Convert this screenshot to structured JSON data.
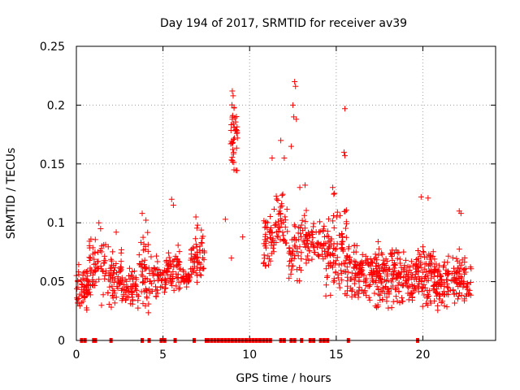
{
  "chart_data": {
    "type": "scatter",
    "title": "Day 194 of 2017, SRMTID for receiver av39",
    "xlabel": "GPS time / hours",
    "ylabel": "SRMTID / TECUs",
    "xlim": [
      0,
      24.2
    ],
    "ylim": [
      0,
      0.25
    ],
    "xticks": [
      0,
      5,
      10,
      15,
      20
    ],
    "yticks": [
      0,
      0.05,
      0.1,
      0.15,
      0.2,
      0.25
    ],
    "xtick_labels": [
      "0",
      "5",
      "10",
      "15",
      "20"
    ],
    "ytick_labels": [
      "0",
      "0.05",
      "0.1",
      "0.15",
      "0.2",
      "0.25"
    ],
    "grid": true,
    "legend": "none",
    "marker": "+",
    "series": [
      {
        "name": "SRMTID",
        "color": "#ff0000",
        "note": "Dense clouds of points reconstructed as clusters (x-range in hours, y-range in TECU), plus explicit outliers and zero-value markers",
        "clusters": [
          {
            "x": [
              0.0,
              0.7
            ],
            "y": [
              0.02,
              0.07
            ],
            "n": 60
          },
          {
            "x": [
              0.7,
              1.7
            ],
            "y": [
              0.025,
              0.1
            ],
            "n": 60
          },
          {
            "x": [
              1.7,
              2.6
            ],
            "y": [
              0.02,
              0.095
            ],
            "n": 60
          },
          {
            "x": [
              2.6,
              3.6
            ],
            "y": [
              0.02,
              0.07
            ],
            "n": 60
          },
          {
            "x": [
              3.6,
              4.2
            ],
            "y": [
              0.01,
              0.11
            ],
            "n": 45
          },
          {
            "x": [
              4.2,
              5.2
            ],
            "y": [
              0.03,
              0.075
            ],
            "n": 55
          },
          {
            "x": [
              5.2,
              6.0
            ],
            "y": [
              0.03,
              0.09
            ],
            "n": 55
          },
          {
            "x": [
              6.0,
              6.6
            ],
            "y": [
              0.04,
              0.065
            ],
            "n": 35
          },
          {
            "x": [
              6.6,
              7.4
            ],
            "y": [
              0.04,
              0.1
            ],
            "n": 55
          },
          {
            "x": [
              8.9,
              9.3
            ],
            "y": [
              0.14,
              0.215
            ],
            "n": 35
          },
          {
            "x": [
              10.8,
              11.4
            ],
            "y": [
              0.05,
              0.12
            ],
            "n": 45
          },
          {
            "x": [
              11.4,
              12.2
            ],
            "y": [
              0.06,
              0.135
            ],
            "n": 45
          },
          {
            "x": [
              12.2,
              13.0
            ],
            "y": [
              0.04,
              0.11
            ],
            "n": 45
          },
          {
            "x": [
              13.0,
              13.6
            ],
            "y": [
              0.05,
              0.12
            ],
            "n": 35
          },
          {
            "x": [
              13.6,
              14.4
            ],
            "y": [
              0.06,
              0.11
            ],
            "n": 40
          },
          {
            "x": [
              14.4,
              15.6
            ],
            "y": [
              0.02,
              0.13
            ],
            "n": 90
          },
          {
            "x": [
              15.6,
              16.6
            ],
            "y": [
              0.02,
              0.095
            ],
            "n": 80
          },
          {
            "x": [
              16.6,
              17.6
            ],
            "y": [
              0.02,
              0.09
            ],
            "n": 80
          },
          {
            "x": [
              17.6,
              18.6
            ],
            "y": [
              0.02,
              0.09
            ],
            "n": 80
          },
          {
            "x": [
              18.6,
              19.6
            ],
            "y": [
              0.02,
              0.085
            ],
            "n": 70
          },
          {
            "x": [
              19.6,
              20.6
            ],
            "y": [
              0.02,
              0.09
            ],
            "n": 80
          },
          {
            "x": [
              20.6,
              21.6
            ],
            "y": [
              0.02,
              0.08
            ],
            "n": 80
          },
          {
            "x": [
              21.6,
              22.8
            ],
            "y": [
              0.02,
              0.085
            ],
            "n": 80
          }
        ],
        "outliers": [
          [
            9.0,
            0.212
          ],
          [
            9.05,
            0.208
          ],
          [
            9.1,
            0.198
          ],
          [
            9.0,
            0.188
          ],
          [
            9.12,
            0.172
          ],
          [
            9.08,
            0.16
          ],
          [
            9.0,
            0.153
          ],
          [
            9.1,
            0.145
          ],
          [
            8.95,
            0.07
          ],
          [
            8.6,
            0.103
          ],
          [
            9.6,
            0.088
          ],
          [
            12.6,
            0.22
          ],
          [
            12.65,
            0.216
          ],
          [
            12.5,
            0.2
          ],
          [
            12.55,
            0.19
          ],
          [
            12.7,
            0.188
          ],
          [
            11.8,
            0.17
          ],
          [
            12.0,
            0.155
          ],
          [
            11.3,
            0.155
          ],
          [
            12.4,
            0.165
          ],
          [
            15.5,
            0.197
          ],
          [
            15.45,
            0.16
          ],
          [
            15.5,
            0.157
          ],
          [
            19.9,
            0.122
          ],
          [
            20.3,
            0.121
          ],
          [
            22.1,
            0.11
          ],
          [
            22.2,
            0.108
          ],
          [
            5.5,
            0.12
          ],
          [
            5.6,
            0.115
          ],
          [
            3.8,
            0.108
          ],
          [
            1.3,
            0.1
          ],
          [
            1.4,
            0.095
          ],
          [
            2.3,
            0.092
          ],
          [
            6.9,
            0.105
          ],
          [
            7.0,
            0.098
          ],
          [
            14.8,
            0.13
          ],
          [
            14.9,
            0.125
          ],
          [
            13.2,
            0.132
          ],
          [
            12.9,
            0.13
          ]
        ],
        "zeros_x": [
          0.3,
          0.5,
          1.0,
          1.1,
          2.0,
          3.8,
          4.2,
          4.9,
          5.1,
          5.7,
          6.8,
          7.5,
          7.6,
          7.8,
          8.0,
          8.2,
          8.4,
          8.6,
          8.8,
          9.0,
          9.2,
          9.4,
          9.6,
          9.8,
          10.0,
          10.2,
          10.4,
          10.6,
          10.8,
          11.0,
          11.2,
          11.8,
          12.0,
          12.4,
          12.6,
          13.0,
          13.5,
          13.7,
          14.1,
          14.3,
          14.5,
          15.7,
          19.7
        ]
      }
    ]
  }
}
